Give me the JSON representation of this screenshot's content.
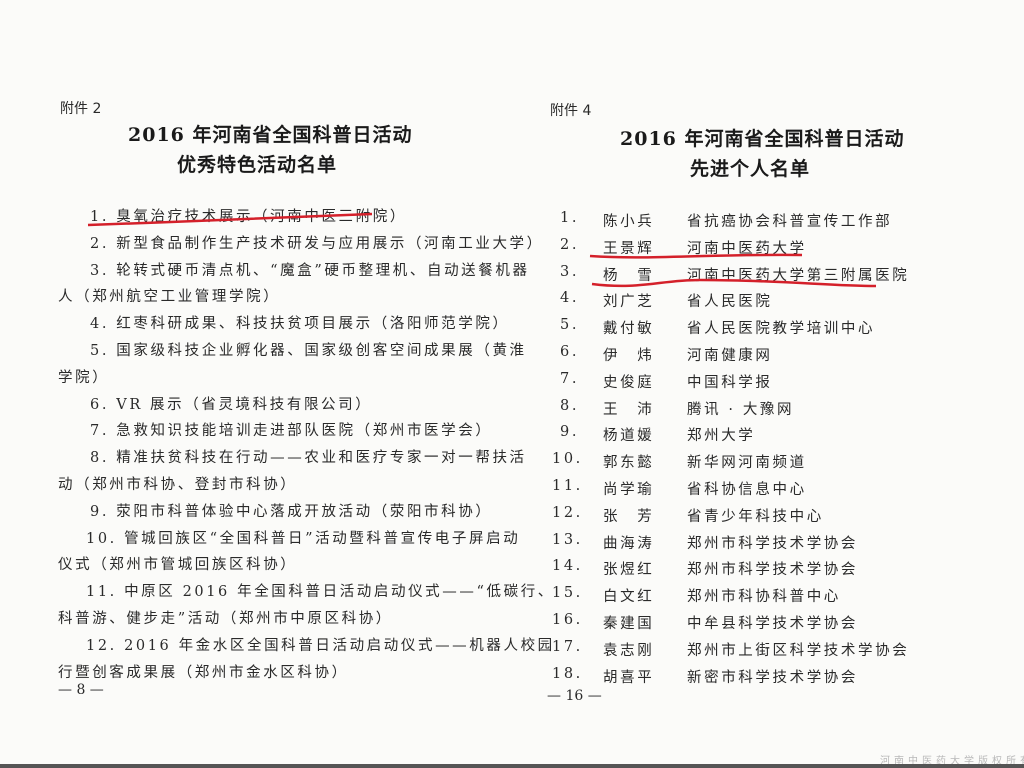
{
  "left_page": {
    "annex": "附件 2",
    "title_line1": "2016 年河南省全国科普日活动",
    "title_line2": "优秀特色活动名单",
    "items": [
      {
        "lines": [
          "1. 臭氧治疗技术展示（河南中医三附院）"
        ],
        "highlighted": true
      },
      {
        "lines": [
          "2. 新型食品制作生产技术研发与应用展示（河南工业大学）"
        ]
      },
      {
        "lines": [
          "3. 轮转式硬币清点机、“魔盒”硬币整理机、自动送餐机器",
          "人（郑州航空工业管理学院）"
        ]
      },
      {
        "lines": [
          "4. 红枣科研成果、科技扶贫项目展示（洛阳师范学院）"
        ]
      },
      {
        "lines": [
          "5. 国家级科技企业孵化器、国家级创客空间成果展（黄淮",
          "学院）"
        ]
      },
      {
        "lines": [
          "6. VR 展示（省灵境科技有限公司）"
        ]
      },
      {
        "lines": [
          "7. 急救知识技能培训走进部队医院（郑州市医学会）"
        ]
      },
      {
        "lines": [
          "8. 精准扶贫科技在行动——农业和医疗专家一对一帮扶活",
          "动（郑州市科协、登封市科协）"
        ]
      },
      {
        "lines": [
          "9. 荥阳市科普体验中心落成开放活动（荥阳市科协）"
        ]
      },
      {
        "lines": [
          "10. 管城回族区“全国科普日”活动暨科普宣传电子屏启动",
          "仪式（郑州市管城回族区科协）"
        ]
      },
      {
        "lines": [
          "11. 中原区 2016 年全国科普日活动启动仪式——“低碳行、",
          "科普游、健步走”活动（郑州市中原区科协）"
        ]
      },
      {
        "lines": [
          "12. 2016 年金水区全国科普日活动启动仪式——机器人校园",
          "行暨创客成果展（郑州市金水区科协）"
        ]
      }
    ],
    "page_number": "— 8 —"
  },
  "right_page": {
    "annex": "附件 4",
    "title_line1": "2016 年河南省全国科普日活动",
    "title_line2": "先进个人名单",
    "people": [
      {
        "no": "1.",
        "name": "陈小兵",
        "org": "省抗癌协会科普宣传工作部"
      },
      {
        "no": "2.",
        "name": "王景辉",
        "org": "河南中医药大学",
        "highlighted": true
      },
      {
        "no": "3.",
        "name": "杨　雪",
        "org": "河南中医药大学第三附属医院",
        "highlighted": true
      },
      {
        "no": "4.",
        "name": "刘广芝",
        "org": "省人民医院"
      },
      {
        "no": "5.",
        "name": "戴付敏",
        "org": "省人民医院教学培训中心"
      },
      {
        "no": "6.",
        "name": "伊　炜",
        "org": "河南健康网"
      },
      {
        "no": "7.",
        "name": "史俊庭",
        "org": "中国科学报"
      },
      {
        "no": "8.",
        "name": "王　沛",
        "org": "腾讯 · 大豫网"
      },
      {
        "no": "9.",
        "name": "杨道媛",
        "org": "郑州大学"
      },
      {
        "no": "10.",
        "name": "郭东懿",
        "org": "新华网河南频道"
      },
      {
        "no": "11.",
        "name": "尚学瑜",
        "org": "省科协信息中心"
      },
      {
        "no": "12.",
        "name": "张　芳",
        "org": "省青少年科技中心"
      },
      {
        "no": "13.",
        "name": "曲海涛",
        "org": "郑州市科学技术学协会"
      },
      {
        "no": "14.",
        "name": "张煜红",
        "org": "郑州市科学技术学协会"
      },
      {
        "no": "15.",
        "name": "白文红",
        "org": "郑州市科协科普中心"
      },
      {
        "no": "16.",
        "name": "秦建国",
        "org": "中牟县科学技术学协会"
      },
      {
        "no": "17.",
        "name": "袁志刚",
        "org": "郑州市上街区科学技术学协会"
      },
      {
        "no": "18.",
        "name": "胡喜平",
        "org": "新密市科学技术学协会"
      }
    ],
    "page_number": "— 16 —"
  },
  "watermark": "河南中医药大学版权所有",
  "colors": {
    "underline": "#d4202a",
    "paper": "#fbfbf9",
    "text": "#2a2a2a"
  }
}
